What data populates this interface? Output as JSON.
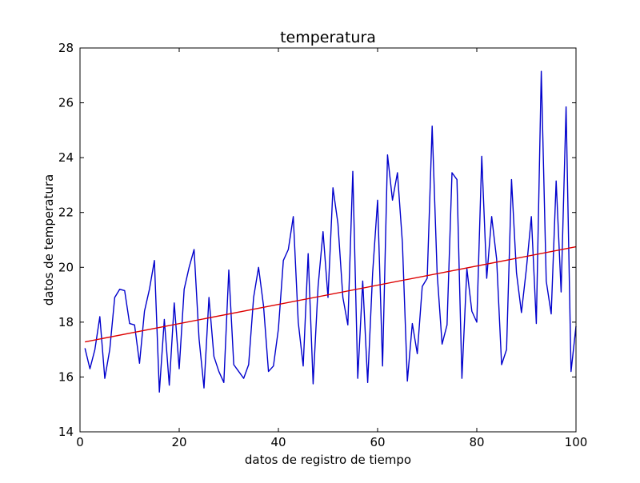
{
  "chart_data": {
    "type": "line",
    "title": "temperatura",
    "xlabel": "datos de registro de tiempo",
    "ylabel": "datos de temperatura",
    "xlim": [
      0,
      100
    ],
    "ylim": [
      14,
      28
    ],
    "xticks": [
      "0",
      "20",
      "40",
      "60",
      "80",
      "100"
    ],
    "yticks": [
      "14",
      "16",
      "18",
      "20",
      "22",
      "24",
      "26",
      "28"
    ],
    "grid": false,
    "series": [
      {
        "color": "#0000cc",
        "x": [
          1,
          2,
          3,
          4,
          5,
          6,
          7,
          8,
          9,
          10,
          11,
          12,
          13,
          14,
          15,
          16,
          17,
          18,
          19,
          20,
          21,
          22,
          23,
          24,
          25,
          26,
          27,
          28,
          29,
          30,
          31,
          32,
          33,
          34,
          35,
          36,
          37,
          38,
          39,
          40,
          41,
          42,
          43,
          44,
          45,
          46,
          47,
          48,
          49,
          50,
          51,
          52,
          53,
          54,
          55,
          56,
          57,
          58,
          59,
          60,
          61,
          62,
          63,
          64,
          65,
          66,
          67,
          68,
          69,
          70,
          71,
          72,
          73,
          74,
          75,
          76,
          77,
          78,
          79,
          80,
          81,
          82,
          83,
          84,
          85,
          86,
          87,
          88,
          89,
          90,
          91,
          92,
          93,
          94,
          95,
          96,
          97,
          98,
          99,
          100
        ],
        "values": [
          17.05,
          16.3,
          17.0,
          18.2,
          15.95,
          17.0,
          18.9,
          19.2,
          19.15,
          17.95,
          17.9,
          16.5,
          18.4,
          19.2,
          20.25,
          15.45,
          18.1,
          15.7,
          18.7,
          16.3,
          19.2,
          20.0,
          20.65,
          17.4,
          15.6,
          18.9,
          16.75,
          16.2,
          15.8,
          19.9,
          16.45,
          16.2,
          15.95,
          16.45,
          18.9,
          20.0,
          18.6,
          16.2,
          16.4,
          17.75,
          20.25,
          20.65,
          21.85,
          18.0,
          16.4,
          20.5,
          15.75,
          19.3,
          21.3,
          18.9,
          22.9,
          21.6,
          18.9,
          17.9,
          23.5,
          15.95,
          19.5,
          15.8,
          19.8,
          22.45,
          16.4,
          24.1,
          22.45,
          23.45,
          20.9,
          15.85,
          17.95,
          16.85,
          19.3,
          19.6,
          25.15,
          19.8,
          17.2,
          17.9,
          23.45,
          23.2,
          15.95,
          19.95,
          18.4,
          18.0,
          24.05,
          19.6,
          21.85,
          20.3,
          16.45,
          17.0,
          23.2,
          19.8,
          18.35,
          19.95,
          21.85,
          17.95,
          27.15,
          19.5,
          18.3,
          23.15,
          19.1,
          25.85,
          16.2,
          17.85
        ]
      },
      {
        "color": "#dd0000",
        "x": [
          1,
          100
        ],
        "values": [
          17.28,
          20.75
        ]
      }
    ]
  }
}
